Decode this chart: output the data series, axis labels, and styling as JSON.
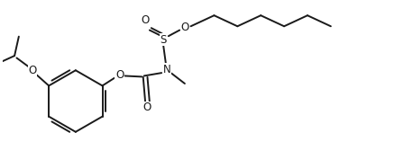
{
  "background": "#ffffff",
  "line_color": "#1a1a1a",
  "line_width": 1.4,
  "font_size": 8.5,
  "figsize": [
    4.58,
    1.87
  ],
  "dpi": 100,
  "xlim": [
    0,
    9.5
  ],
  "ylim": [
    0,
    3.9
  ]
}
